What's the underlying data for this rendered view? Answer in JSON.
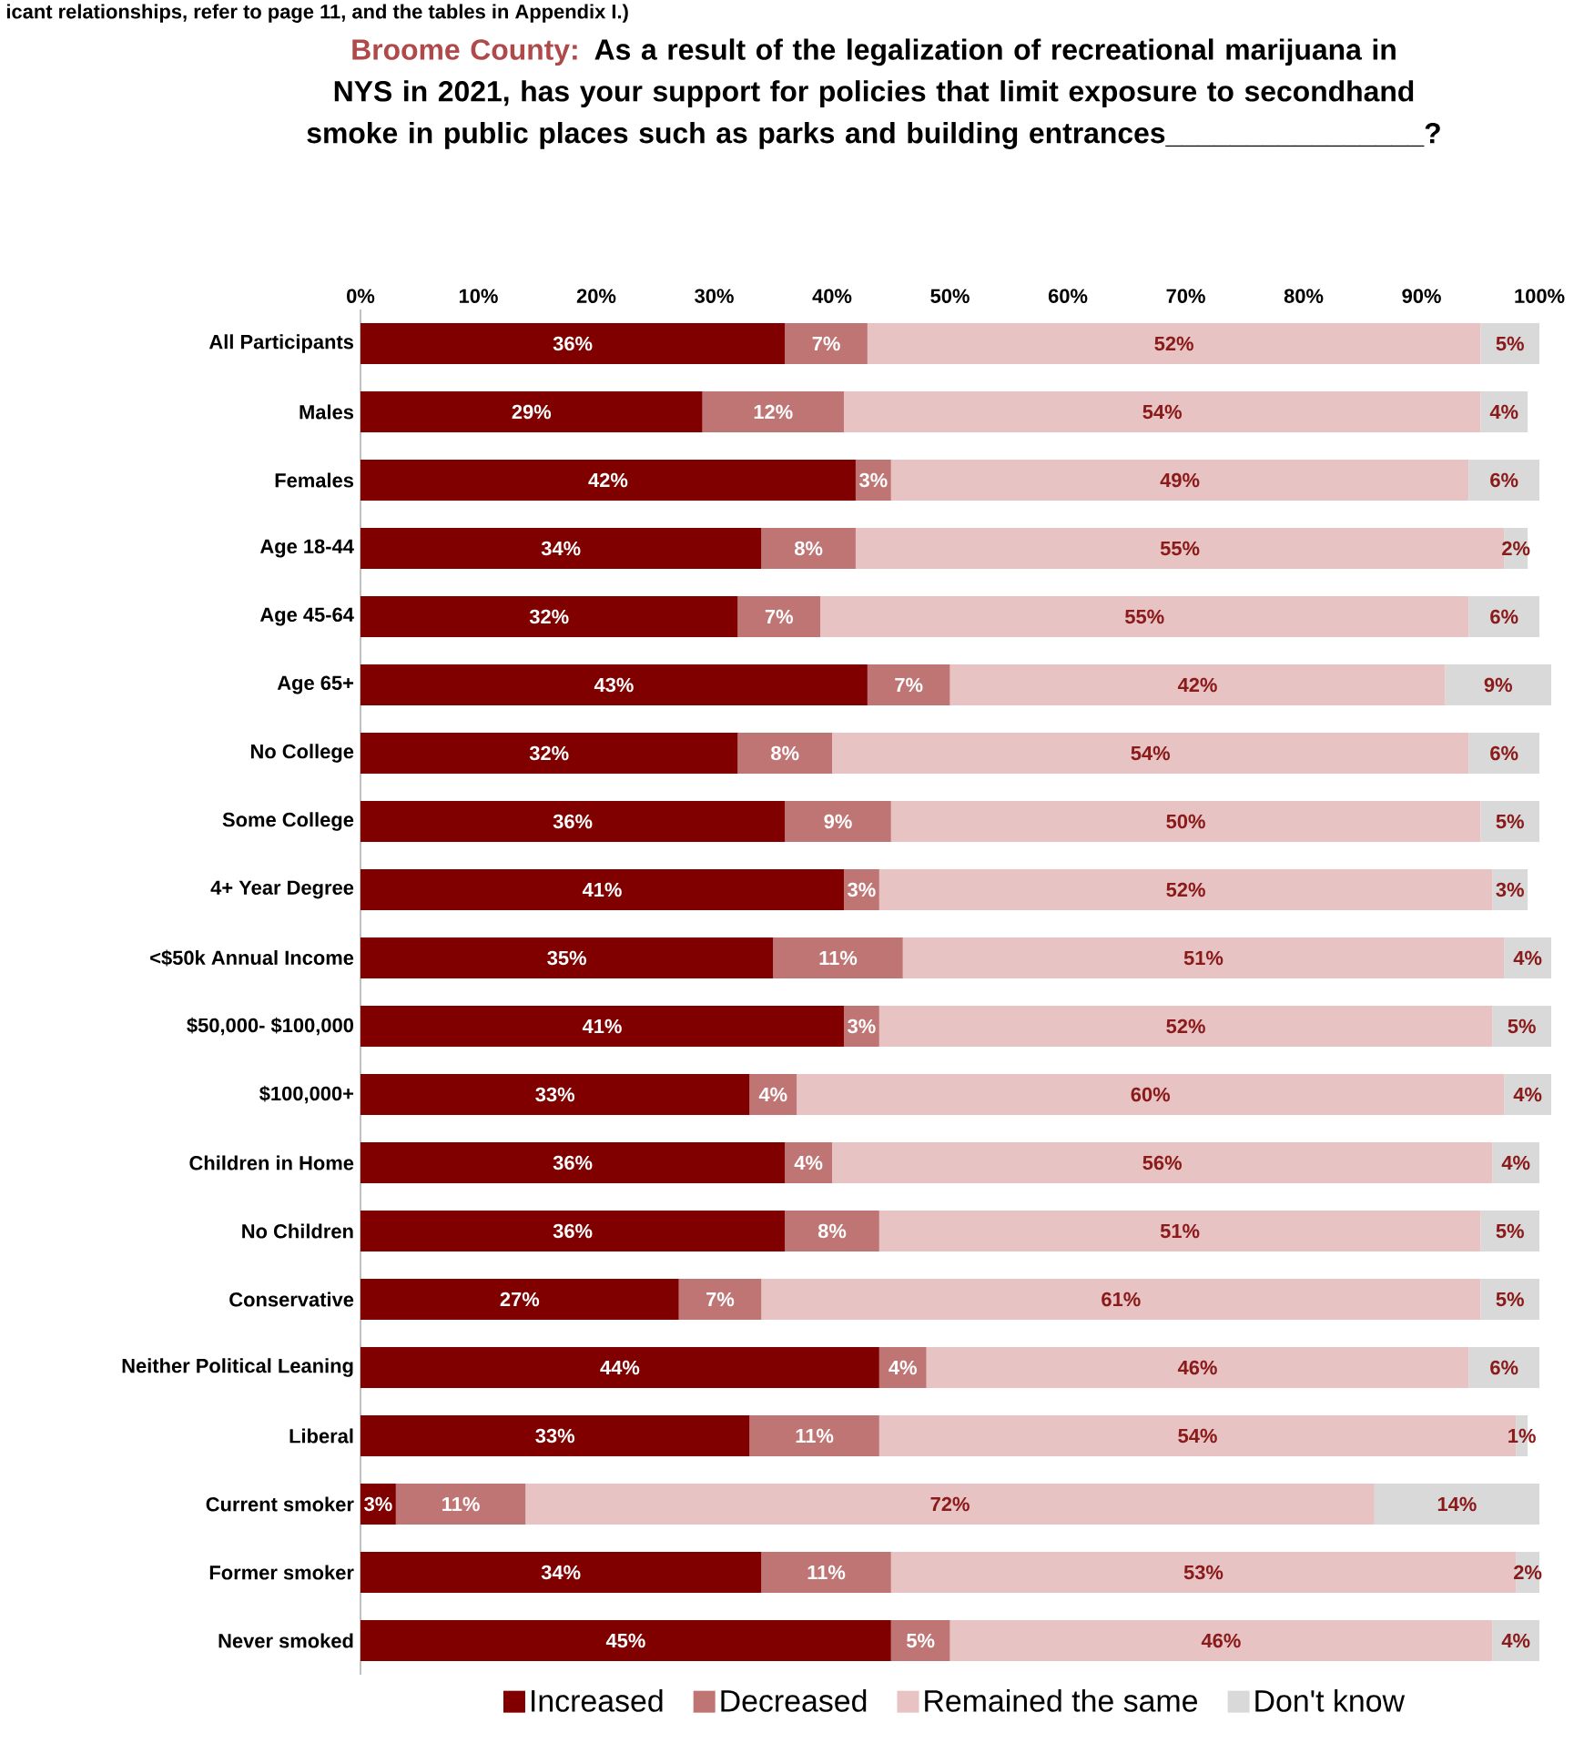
{
  "chart_data": {
    "type": "bar",
    "orientation": "horizontal",
    "stacked": true,
    "title": "Broome County:",
    "subtitle": "As a result of the legalization of recreational marijuana in NYS in 2021, has your support for policies that limit exposure to secondhand smoke in public places such as parks and building entrances________________?",
    "annotations": [
      "icant relationships, refer to page 11, and the tables in Appendix I.)"
    ],
    "categories": [
      "All Participants",
      "Males",
      "Females",
      "Age 18-44",
      "Age 45-64",
      "Age 65+",
      "No College",
      "Some College",
      "4+ Year Degree",
      "<$50k Annual Income",
      "$50,000- $100,000",
      "$100,000+",
      "Children in Home",
      "No Children",
      "Conservative",
      "Neither Political Leaning",
      "Liberal",
      "Current smoker",
      "Former smoker",
      "Never smoked"
    ],
    "xlim": [
      0,
      101
    ],
    "xticks": [
      {
        "value": 0,
        "label": "0%"
      },
      {
        "value": 10,
        "label": "10%"
      },
      {
        "value": 20,
        "label": "20%"
      },
      {
        "value": 30,
        "label": "30%"
      },
      {
        "value": 40,
        "label": "40%"
      },
      {
        "value": 50,
        "label": "50%"
      },
      {
        "value": 60,
        "label": "60%"
      },
      {
        "value": 70,
        "label": "70%"
      },
      {
        "value": 80,
        "label": "80%"
      },
      {
        "value": 90,
        "label": "90%"
      },
      {
        "value": 100,
        "label": "100%"
      }
    ],
    "legend": "bottom",
    "series": [
      {
        "name": "Increased",
        "color": "#800000",
        "values": [
          36,
          29,
          42,
          34,
          32,
          43,
          32,
          36,
          41,
          35,
          41,
          33,
          36,
          36,
          27,
          44,
          33,
          3,
          34,
          45
        ],
        "value_labels": [
          "36%",
          "29%",
          "42%",
          "34%",
          "32%",
          "43%",
          "32%",
          "36%",
          "41%",
          "35%",
          "41%",
          "33%",
          "36%",
          "36%",
          "27%",
          "44%",
          "33%",
          "3%",
          "34%",
          "45%"
        ]
      },
      {
        "name": "Decreased",
        "color": "#c07575",
        "values": [
          7,
          12,
          3,
          8,
          7,
          7,
          8,
          9,
          3,
          11,
          3,
          4,
          4,
          8,
          7,
          4,
          11,
          11,
          11,
          5
        ],
        "value_labels": [
          "7%",
          "12%",
          "3%",
          "8%",
          "7%",
          "7%",
          "8%",
          "9%",
          "3%",
          "11%",
          "3%",
          "4%",
          "4%",
          "8%",
          "7%",
          "4%",
          "11%",
          "11%",
          "11%",
          "5%"
        ]
      },
      {
        "name": "Remained the same",
        "color": "#e8c3c3",
        "values": [
          52,
          54,
          49,
          55,
          55,
          42,
          54,
          50,
          52,
          51,
          52,
          60,
          56,
          51,
          61,
          46,
          54,
          72,
          53,
          46
        ],
        "value_labels": [
          "52%",
          "54%",
          "49%",
          "55%",
          "55%",
          "42%",
          "54%",
          "50%",
          "52%",
          "51%",
          "52%",
          "60%",
          "56%",
          "51%",
          "61%",
          "46%",
          "54%",
          "72%",
          "53%",
          "46%"
        ]
      },
      {
        "name": "Don't know",
        "color": "#d9d9d9",
        "values": [
          5,
          4,
          6,
          2,
          6,
          9,
          6,
          5,
          3,
          4,
          5,
          4,
          4,
          5,
          5,
          6,
          1,
          14,
          2,
          4
        ],
        "value_labels": [
          "5%",
          "4%",
          "6%",
          "2%",
          "6%",
          "9%",
          "6%",
          "5%",
          "3%",
          "4%",
          "5%",
          "4%",
          "4%",
          "5%",
          "5%",
          "6%",
          "1%",
          "14%",
          "2%",
          "4%"
        ]
      }
    ]
  }
}
